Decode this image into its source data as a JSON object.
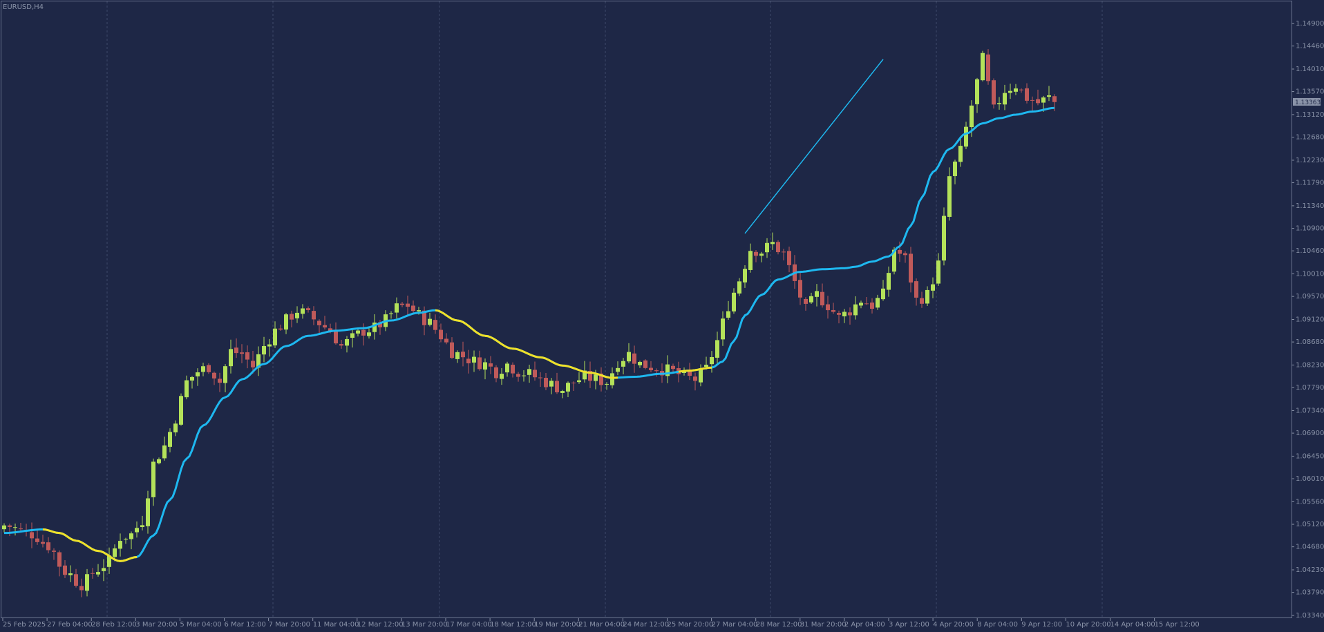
{
  "window": {
    "symbol_label": "EURUSD,H4"
  },
  "colors": {
    "background": "#1e2746",
    "bull": "#b4e25a",
    "bear": "#c05a5a",
    "ma_up": "#1eb8f0",
    "ma_down": "#f0e028",
    "trendline": "#1eb8f0",
    "grid": "#3d4a6b",
    "axis_text": "#8a93a8"
  },
  "chart_data": {
    "type": "candlestick",
    "title": "",
    "symbol": "EURUSD",
    "timeframe": "H4",
    "y_ticks": [
      1.149,
      1.1446,
      1.1401,
      1.1357,
      1.1312,
      1.1268,
      1.1223,
      1.1179,
      1.1134,
      1.109,
      1.1046,
      1.1001,
      1.0957,
      1.0912,
      1.0868,
      1.0823,
      1.0779,
      1.0734,
      1.069,
      1.0645,
      1.0601,
      1.0556,
      1.0512,
      1.0468,
      1.0423,
      1.0379,
      1.0334
    ],
    "ylim": [
      1.0334,
      1.149
    ],
    "x_tick_labels": [
      "25 Feb 2025",
      "27 Feb 04:00",
      "28 Feb 12:00",
      "3 Mar 20:00",
      "5 Mar 04:00",
      "6 Mar 12:00",
      "7 Mar 20:00",
      "11 Mar 04:00",
      "12 Mar 12:00",
      "13 Mar 20:00",
      "17 Mar 04:00",
      "18 Mar 12:00",
      "19 Mar 20:00",
      "21 Mar 04:00",
      "24 Mar 12:00",
      "25 Mar 20:00",
      "27 Mar 04:00",
      "28 Mar 12:00",
      "31 Mar 20:00",
      "2 Apr 04:00",
      "3 Apr 12:00",
      "4 Apr 20:00",
      "8 Apr 04:00",
      "9 Apr 12:00",
      "10 Apr 20:00",
      "14 Apr 04:00",
      "15 Apr 12:00"
    ],
    "current_price": "1.13363",
    "current_price_value": 1.13363,
    "close_anchors": [
      [
        0,
        1.051
      ],
      [
        5,
        1.0493
      ],
      [
        8,
        1.047
      ],
      [
        11,
        1.042
      ],
      [
        14,
        1.0395
      ],
      [
        17,
        1.0425
      ],
      [
        19,
        1.044
      ],
      [
        21,
        1.0487
      ],
      [
        23,
        1.0492
      ],
      [
        25,
        1.052
      ],
      [
        27,
        1.063
      ],
      [
        29,
        1.0665
      ],
      [
        31,
        1.072
      ],
      [
        33,
        1.079
      ],
      [
        35,
        1.081
      ],
      [
        37,
        1.082
      ],
      [
        39,
        1.079
      ],
      [
        41,
        1.085
      ],
      [
        43,
        1.0845
      ],
      [
        45,
        1.082
      ],
      [
        47,
        1.086
      ],
      [
        49,
        1.089
      ],
      [
        51,
        1.091
      ],
      [
        53,
        1.093
      ],
      [
        55,
        1.092
      ],
      [
        57,
        1.0905
      ],
      [
        59,
        1.089
      ],
      [
        61,
        1.086
      ],
      [
        63,
        1.0875
      ],
      [
        65,
        1.089
      ],
      [
        67,
        1.0895
      ],
      [
        69,
        1.091
      ],
      [
        71,
        1.0935
      ],
      [
        73,
        1.094
      ],
      [
        75,
        1.092
      ],
      [
        77,
        1.0905
      ],
      [
        79,
        1.088
      ],
      [
        81,
        1.085
      ],
      [
        83,
        1.084
      ],
      [
        85,
        1.083
      ],
      [
        87,
        1.0825
      ],
      [
        89,
        1.081
      ],
      [
        91,
        1.0825
      ],
      [
        93,
        1.081
      ],
      [
        95,
        1.0805
      ],
      [
        97,
        1.0795
      ],
      [
        99,
        1.0785
      ],
      [
        101,
        1.0775
      ],
      [
        103,
        1.079
      ],
      [
        105,
        1.08
      ],
      [
        107,
        1.0795
      ],
      [
        109,
        1.079
      ],
      [
        111,
        1.083
      ],
      [
        113,
        1.0845
      ],
      [
        115,
        1.0825
      ],
      [
        117,
        1.082
      ],
      [
        119,
        1.0815
      ],
      [
        121,
        1.081
      ],
      [
        123,
        1.08
      ],
      [
        125,
        1.0795
      ],
      [
        127,
        1.0815
      ],
      [
        129,
        1.087
      ],
      [
        131,
        1.094
      ],
      [
        133,
        1.099
      ],
      [
        135,
        1.105
      ],
      [
        137,
        1.1045
      ],
      [
        139,
        1.106
      ],
      [
        141,
        1.104
      ],
      [
        143,
        1.0985
      ],
      [
        145,
        1.093
      ],
      [
        147,
        1.096
      ],
      [
        149,
        1.094
      ],
      [
        151,
        1.0915
      ],
      [
        153,
        1.093
      ],
      [
        155,
        1.095
      ],
      [
        157,
        1.094
      ],
      [
        159,
        1.096
      ],
      [
        161,
        1.105
      ],
      [
        163,
        1.103
      ],
      [
        165,
        1.095
      ],
      [
        167,
        1.096
      ],
      [
        169,
        1.102
      ],
      [
        171,
        1.119
      ],
      [
        173,
        1.124
      ],
      [
        175,
        1.133
      ],
      [
        177,
        1.142
      ],
      [
        179,
        1.132
      ],
      [
        181,
        1.136
      ],
      [
        183,
        1.137
      ],
      [
        185,
        1.1345
      ],
      [
        187,
        1.1335
      ],
      [
        189,
        1.1345
      ],
      [
        190,
        1.1336
      ]
    ],
    "ma_anchors": [
      [
        0,
        1.0495
      ],
      [
        7,
        1.0502
      ],
      [
        10,
        1.0495
      ],
      [
        13,
        1.048
      ],
      [
        17,
        1.046
      ],
      [
        21,
        1.044
      ],
      [
        24,
        1.0448
      ],
      [
        27,
        1.049
      ],
      [
        30,
        1.056
      ],
      [
        33,
        1.064
      ],
      [
        36,
        1.0705
      ],
      [
        40,
        1.076
      ],
      [
        43,
        1.0795
      ],
      [
        47,
        1.0825
      ],
      [
        51,
        1.086
      ],
      [
        55,
        1.088
      ],
      [
        60,
        1.089
      ],
      [
        65,
        1.0895
      ],
      [
        70,
        1.091
      ],
      [
        75,
        1.0925
      ],
      [
        78,
        1.093
      ],
      [
        82,
        1.091
      ],
      [
        87,
        1.088
      ],
      [
        92,
        1.0855
      ],
      [
        97,
        1.0838
      ],
      [
        101,
        1.0822
      ],
      [
        106,
        1.0808
      ],
      [
        110,
        1.0798
      ],
      [
        114,
        1.08
      ],
      [
        119,
        1.0806
      ],
      [
        124,
        1.0812
      ],
      [
        128,
        1.0818
      ],
      [
        130,
        1.083
      ],
      [
        132,
        1.087
      ],
      [
        134,
        1.092
      ],
      [
        137,
        1.096
      ],
      [
        140,
        1.099
      ],
      [
        144,
        1.1005
      ],
      [
        148,
        1.101
      ],
      [
        152,
        1.1012
      ],
      [
        154,
        1.1015
      ],
      [
        157,
        1.1025
      ],
      [
        160,
        1.1035
      ],
      [
        162,
        1.1055
      ],
      [
        164,
        1.1095
      ],
      [
        166,
        1.115
      ],
      [
        168,
        1.12
      ],
      [
        171,
        1.1245
      ],
      [
        174,
        1.1275
      ],
      [
        177,
        1.1295
      ],
      [
        180,
        1.1305
      ],
      [
        183,
        1.1312
      ],
      [
        186,
        1.1318
      ],
      [
        190,
        1.1325
      ]
    ],
    "ma_down_segments": [
      [
        7,
        24
      ],
      [
        78,
        111
      ],
      [
        122,
        128
      ]
    ],
    "trendline": [
      [
        134,
        1.108
      ],
      [
        159,
        1.142
      ]
    ],
    "visible_bars": 191
  }
}
